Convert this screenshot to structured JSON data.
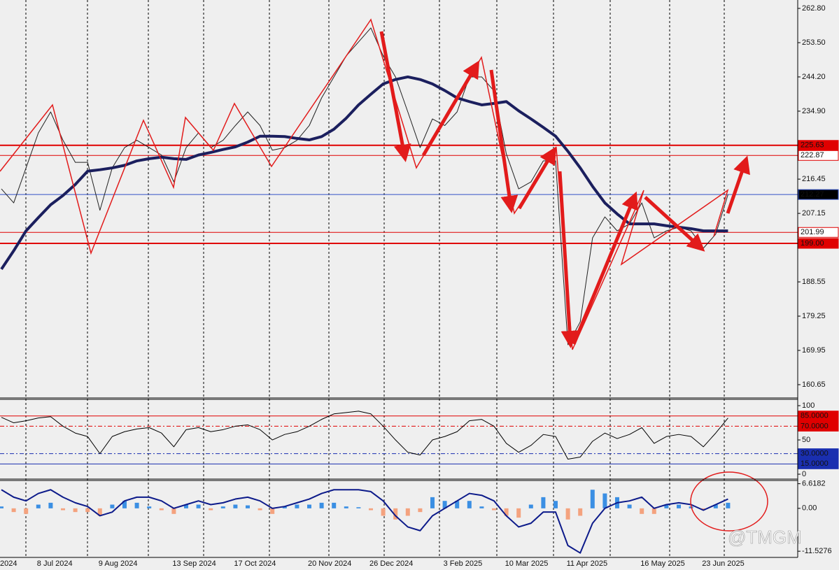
{
  "chart_data": [
    {
      "type": "line",
      "categories": [
        "2024",
        null,
        null,
        "8 Jul 2024",
        null,
        null,
        null,
        null,
        "9 Aug 2024",
        null,
        null,
        null,
        null,
        null,
        "13 Sep 2024",
        null,
        null,
        null,
        null,
        "17 Oct 2024",
        null,
        null,
        null,
        null,
        null,
        "20 Nov 2024",
        null,
        null,
        null,
        null,
        "26 Dec 2024",
        null,
        null,
        null,
        null,
        null,
        "3 Feb 2025",
        null,
        null,
        null,
        null,
        "10 Mar 2025",
        null,
        null,
        null,
        null,
        "11 Apr 2025",
        null,
        null,
        null,
        null,
        null,
        "16 May 2025",
        null,
        null,
        null,
        null,
        "23 Jun 2025",
        null,
        null
      ],
      "series": [
        {
          "color": "#222222",
          "width": 1,
          "values": [
            213.8,
            210,
            219.5,
            229,
            234.7,
            227,
            221,
            221,
            208,
            219.5,
            225,
            227,
            225,
            223,
            215.7,
            225,
            229,
            225,
            227,
            231,
            234.7,
            231,
            224.3,
            225,
            227,
            231,
            238.5,
            244.2,
            249.9,
            253.7,
            257.5,
            249.9,
            244.2,
            234.7,
            225,
            232.8,
            231,
            234.7,
            244.2,
            244.2,
            240.4,
            223.3,
            213.8,
            215.7,
            221.4,
            221.4,
            171.5,
            177.7,
            200.5,
            206.2,
            202.4,
            204.3,
            210,
            200.5,
            202.4,
            203.4,
            202.4,
            197.7,
            201.5,
            212.27
          ]
        },
        {
          "color": "#1b1f5e",
          "width": 4,
          "values": [
            192,
            197,
            202.4,
            206,
            209.5,
            212,
            215,
            218.6,
            219,
            219.5,
            220.2,
            221.4,
            222,
            222.4,
            222,
            221.8,
            223,
            223.7,
            224.5,
            225.2,
            226.5,
            228.1,
            228.1,
            228,
            227.5,
            227.1,
            228,
            230,
            233,
            236.6,
            239.5,
            242.3,
            243.5,
            244.2,
            243.5,
            242.3,
            240.5,
            238.5,
            237.5,
            236.6,
            237,
            237.5,
            235,
            232.8,
            230.5,
            228.1,
            224,
            219.5,
            214.5,
            210,
            207,
            204.3,
            204.3,
            204.3,
            203.8,
            203.4,
            203,
            202.4,
            202.4,
            202.4
          ]
        }
      ],
      "ylim": [
        157.23,
        265.08
      ],
      "yticks": [
        {
          "value": 262.8,
          "label": "262.80"
        },
        {
          "value": 253.5,
          "label": "253.50"
        },
        {
          "value": 244.2,
          "label": "244.20"
        },
        {
          "value": 234.9,
          "label": "234.90"
        },
        216.45,
        207.15,
        188.55,
        179.25,
        169.95,
        160.65
      ],
      "levels": [
        {
          "value": 225.63,
          "color": "#e00000",
          "width": 2,
          "dash": "solid",
          "label_fill": "#e00000",
          "label_color": "#ffffff"
        },
        {
          "value": 222.87,
          "color": "#e00000",
          "width": 1,
          "dash": "solid",
          "label_fill": "#ffffff",
          "label_color": "#e00000"
        },
        {
          "value": 212.27,
          "color": "#3050c8",
          "width": 1,
          "dash": "solid",
          "label_fill": "#000000",
          "label_color": "#ffffff"
        },
        {
          "value": 201.99,
          "color": "#e00000",
          "width": 1,
          "dash": "solid",
          "label_fill": "#ffffff",
          "label_color": "#e00000"
        },
        {
          "value": 199,
          "label": "199.00",
          "color": "#e00000",
          "width": 2,
          "dash": "solid",
          "label_fill": "#e00000",
          "label_color": "#ffffff"
        }
      ]
    },
    {
      "type": "line",
      "series": [
        {
          "color": "#000000",
          "width": 1,
          "values": [
            83,
            75,
            78,
            82,
            84,
            70,
            60,
            55,
            30,
            55,
            62,
            66,
            68,
            60,
            40,
            65,
            68,
            62,
            65,
            70,
            72,
            65,
            50,
            58,
            62,
            70,
            80,
            88,
            90,
            92,
            88,
            70,
            50,
            32,
            28,
            50,
            55,
            62,
            78,
            80,
            70,
            45,
            32,
            42,
            58,
            55,
            22,
            25,
            48,
            60,
            52,
            58,
            68,
            45,
            55,
            58,
            55,
            40,
            60,
            82
          ]
        }
      ],
      "ylim": [
        -6.1,
        108.2
      ],
      "yticks": [
        100,
        50,
        0
      ],
      "levels": [
        {
          "value": 85,
          "label": "85.0000",
          "color": "#e00000",
          "width": 1,
          "dash": "solid",
          "label_fill": "#e00000",
          "label_color": "#ffffff"
        },
        {
          "value": 70,
          "label": "70.0000",
          "color": "#e00000",
          "width": 1,
          "dash": "dashdot",
          "label_fill": "#e00000",
          "label_color": "#ffffff"
        },
        {
          "value": 30,
          "label": "30.0000",
          "color": "#1a2fb0",
          "width": 1,
          "dash": "dashdot",
          "label_fill": "#1a2fb0",
          "label_color": "#ffffff"
        },
        {
          "value": 15,
          "label": "15.0000",
          "color": "#1a2fb0",
          "width": 1,
          "dash": "solid",
          "label_fill": "#1a2fb0",
          "label_color": "#ffffff"
        }
      ]
    },
    {
      "type": "bar",
      "series": [
        {
          "color": "#3b8fe3",
          "negative_color": "#f4a27e",
          "values": [
            0.5,
            -1,
            -1.5,
            1,
            1.5,
            -0.5,
            -1,
            -1,
            -2,
            1,
            2,
            1.5,
            0.5,
            -0.5,
            -1.5,
            1,
            1,
            -0.5,
            0.5,
            1,
            0.8,
            -0.5,
            -1.5,
            0.5,
            1,
            1,
            1.5,
            1.5,
            0.5,
            0.3,
            -0.5,
            -2,
            -3,
            -2,
            -1,
            3,
            2,
            2,
            2,
            0.5,
            -0.5,
            -2,
            -2.5,
            1,
            3,
            2,
            -3,
            -2,
            5,
            4,
            3,
            1,
            -1.5,
            -1.5,
            1,
            1,
            0.5,
            -0.5,
            1,
            1.5
          ]
        },
        {
          "color": "#0c1a8a",
          "width": 2,
          "values": [
            5,
            3,
            2,
            4,
            5,
            3,
            1.5,
            0.5,
            -2,
            -1,
            2,
            3,
            3,
            2,
            0,
            1,
            2,
            1,
            1.5,
            2.5,
            3,
            2,
            0,
            0.5,
            1.5,
            2.5,
            4,
            5,
            5,
            5,
            4.5,
            2,
            -2,
            -5,
            -6,
            -2,
            0,
            2,
            4,
            3.5,
            2,
            -2,
            -5,
            -4,
            -1,
            -1,
            -10,
            -12,
            -4,
            0,
            1.5,
            2,
            3,
            0,
            1,
            1.5,
            1,
            -0.5,
            1,
            2.5
          ]
        }
      ],
      "ylim": [
        -13.0,
        7.3
      ],
      "yticks": [
        6.6182,
        {
          "value": 0,
          "label": "0.00"
        },
        -11.5276
      ],
      "watermark": "@TMGM"
    }
  ]
}
